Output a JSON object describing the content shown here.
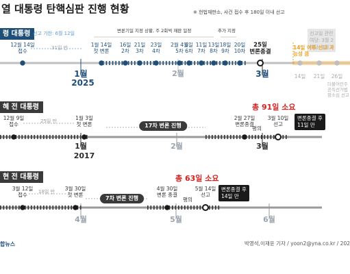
{
  "header": {
    "title": "열 대통령 탄핵심판 진행 현황",
    "note": "※ 헌법재판소, 사건 접수 후 180일 이내 선고"
  },
  "sections": [
    {
      "label": "령 대통령",
      "deadline": "선고 기한: 6월 12일",
      "gap_first": "31일 만",
      "annotations": {
        "note1": "변론기일 지정 상황, 주 2회씩 재판 일정",
        "note2": "추가 지정",
        "range_label": "14일 이후 선고 가능성 큼",
        "greybox": "선고일 관련\n여당: 3월 2\n야당: 3월 2",
        "greynote": "더불어민주\n공직선거법\n항소심 선고"
      },
      "events": [
        {
          "label": "12월 14일\n접수",
          "style": "blue"
        },
        {
          "label": "1월 14일\n첫 변론",
          "style": "blue"
        },
        {
          "label": "16일\n2차",
          "style": "blue"
        },
        {
          "label": "21일\n3차",
          "style": "blue"
        },
        {
          "label": "23일\n4차",
          "style": "blue"
        },
        {
          "label": "2월 4일\n5차",
          "style": "blue"
        },
        {
          "label": "6일\n6차",
          "style": "blue"
        },
        {
          "label": "11일\n7차",
          "style": "blue"
        },
        {
          "label": "13일\n8차",
          "style": "blue"
        },
        {
          "label": "18일\n9차",
          "style": "blue"
        },
        {
          "label": "20일\n10차",
          "style": "blue"
        },
        {
          "label": "25일\n변론종결",
          "style": "bold"
        },
        {
          "label": "14일",
          "style": "grey"
        },
        {
          "label": "21일",
          "style": "grey"
        },
        {
          "label": "26일",
          "style": "grey"
        }
      ],
      "months": [
        "1월",
        "2월",
        "3월"
      ],
      "year": "2025"
    },
    {
      "label": "혜 전 대통령",
      "gap_first": "25일 만",
      "pill": "17차 변론 진행",
      "total": "총 91일 소요",
      "between_label": "평의",
      "box": "변론종결 후\n11일 만",
      "events": [
        {
          "label": "12월 9일\n접수"
        },
        {
          "label": "1월 3일\n첫 변론"
        },
        {
          "label": "2월 27일\n변론종결"
        },
        {
          "label": "3월 10일\n선고"
        }
      ],
      "months": [
        "1월",
        "2월",
        "3월"
      ],
      "year": "2017"
    },
    {
      "label": "현 전 대통령",
      "gap_first": "18일 만",
      "pill": "7차 변론 진행",
      "total": "총 63일 소요",
      "between_label": "평의",
      "box": "변론종결 후\n14일 만",
      "events": [
        {
          "label": "3월 12일\n접수"
        },
        {
          "label": "3월 30일\n첫 변론"
        },
        {
          "label": "4월 30일\n변론 종결"
        },
        {
          "label": "5월 14일\n선고"
        }
      ],
      "months": [
        "4월",
        "5월",
        "6월"
      ]
    }
  ],
  "footer": {
    "logo": "합뉴스",
    "credit": "박영석,이재윤 기자 / yoon2@yna.co.kr / 202"
  },
  "colors": {
    "blue": "#1f4e79",
    "red": "#d91e1e",
    "orange": "#f0a020",
    "dark": "#1a1a1a"
  }
}
